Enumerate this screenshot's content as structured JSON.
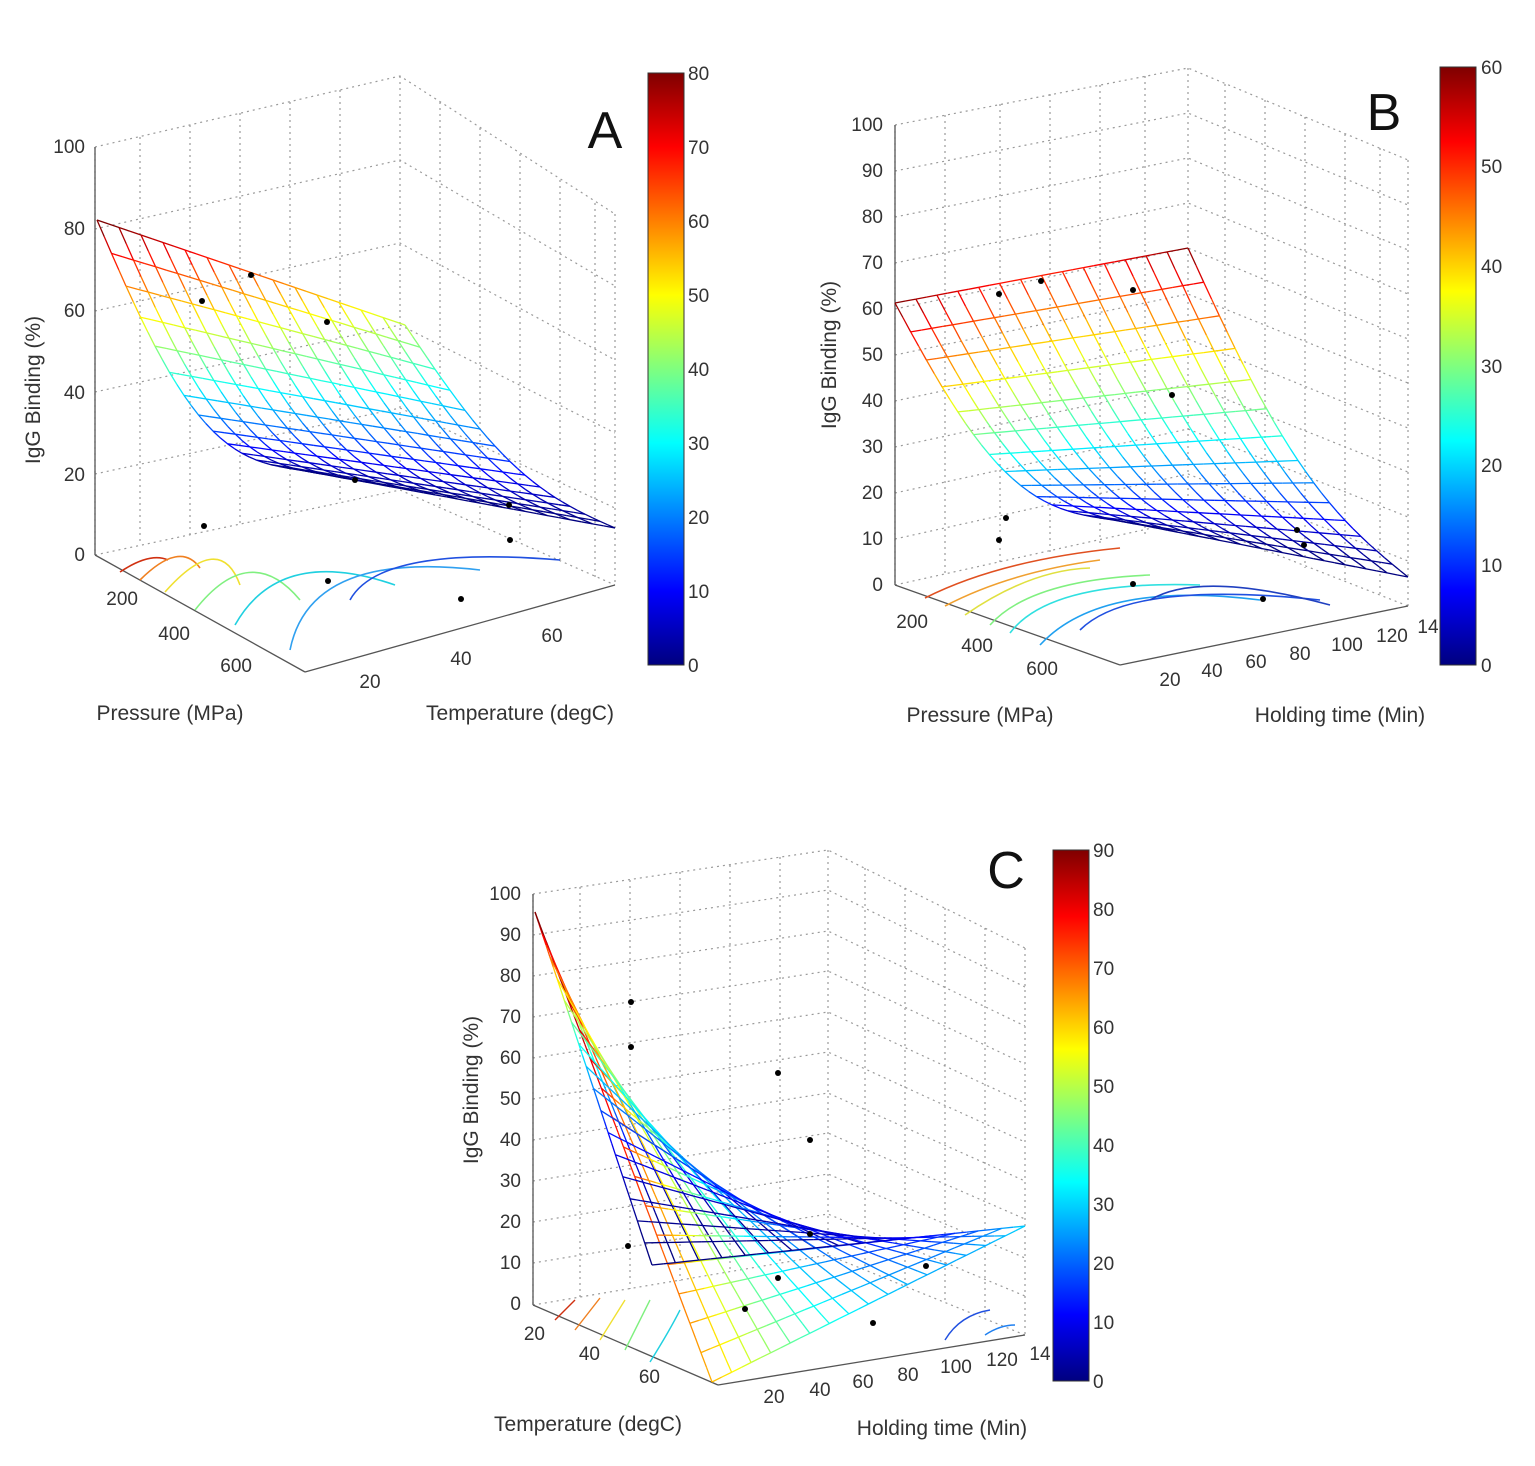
{
  "figure": {
    "colormap": [
      "#00007f",
      "#0000ff",
      "#007fff",
      "#00ffff",
      "#7fff7f",
      "#ffff00",
      "#ff7f00",
      "#ff0000",
      "#7f0000"
    ]
  },
  "chart_data": [
    {
      "type": "surface3d",
      "panel": "A",
      "zlabel": "IgG Binding (%)",
      "xlabel": "Pressure (MPa)",
      "ylabel": "Temperature (degC)",
      "xticks": [
        "200",
        "400",
        "600"
      ],
      "yticks": [
        "20",
        "40",
        "60"
      ],
      "zticks": [
        "0",
        "20",
        "40",
        "60",
        "80",
        "100"
      ],
      "zlim": [
        0,
        100
      ],
      "colorbar": {
        "min": 0,
        "max": 80,
        "ticks": [
          "0",
          "10",
          "20",
          "30",
          "40",
          "50",
          "60",
          "70",
          "80"
        ]
      },
      "surface_z_range": [
        0,
        82
      ],
      "experimental_points": [
        68,
        62,
        56,
        19,
        12,
        7,
        3,
        2,
        1
      ]
    },
    {
      "type": "surface3d",
      "panel": "B",
      "zlabel": "IgG Binding (%)",
      "xlabel": "Pressure (MPa)",
      "ylabel": "Holding time (Min)",
      "xticks": [
        "200",
        "400",
        "600"
      ],
      "yticks": [
        "20",
        "40",
        "60",
        "80",
        "100",
        "120",
        "14"
      ],
      "zticks": [
        "0",
        "10",
        "20",
        "30",
        "40",
        "50",
        "60",
        "70",
        "80",
        "90",
        "100"
      ],
      "zlim": [
        0,
        100
      ],
      "colorbar": {
        "min": 0,
        "max": 60,
        "ticks": [
          "0",
          "10",
          "20",
          "30",
          "40",
          "50",
          "60"
        ]
      },
      "surface_z_range": [
        0,
        72
      ],
      "experimental_points": [
        63,
        66,
        63,
        41,
        15,
        10,
        12,
        9,
        2,
        1
      ]
    },
    {
      "type": "surface3d",
      "panel": "C",
      "zlabel": "IgG Binding (%)",
      "xlabel": "Temperature (degC)",
      "ylabel": "Holding time (Min)",
      "xticks": [
        "20",
        "40",
        "60"
      ],
      "yticks": [
        "20",
        "40",
        "60",
        "80",
        "100",
        "120",
        "14"
      ],
      "zticks": [
        "0",
        "10",
        "20",
        "30",
        "40",
        "50",
        "60",
        "70",
        "80",
        "90",
        "100"
      ],
      "zlim": [
        0,
        100
      ],
      "colorbar": {
        "min": 0,
        "max": 90,
        "ticks": [
          "0",
          "10",
          "20",
          "30",
          "40",
          "50",
          "60",
          "70",
          "80",
          "90"
        ]
      },
      "surface_z_range": [
        0,
        95
      ],
      "experimental_points": [
        73,
        62,
        55,
        40,
        17,
        14,
        8,
        6,
        2,
        1
      ]
    }
  ]
}
